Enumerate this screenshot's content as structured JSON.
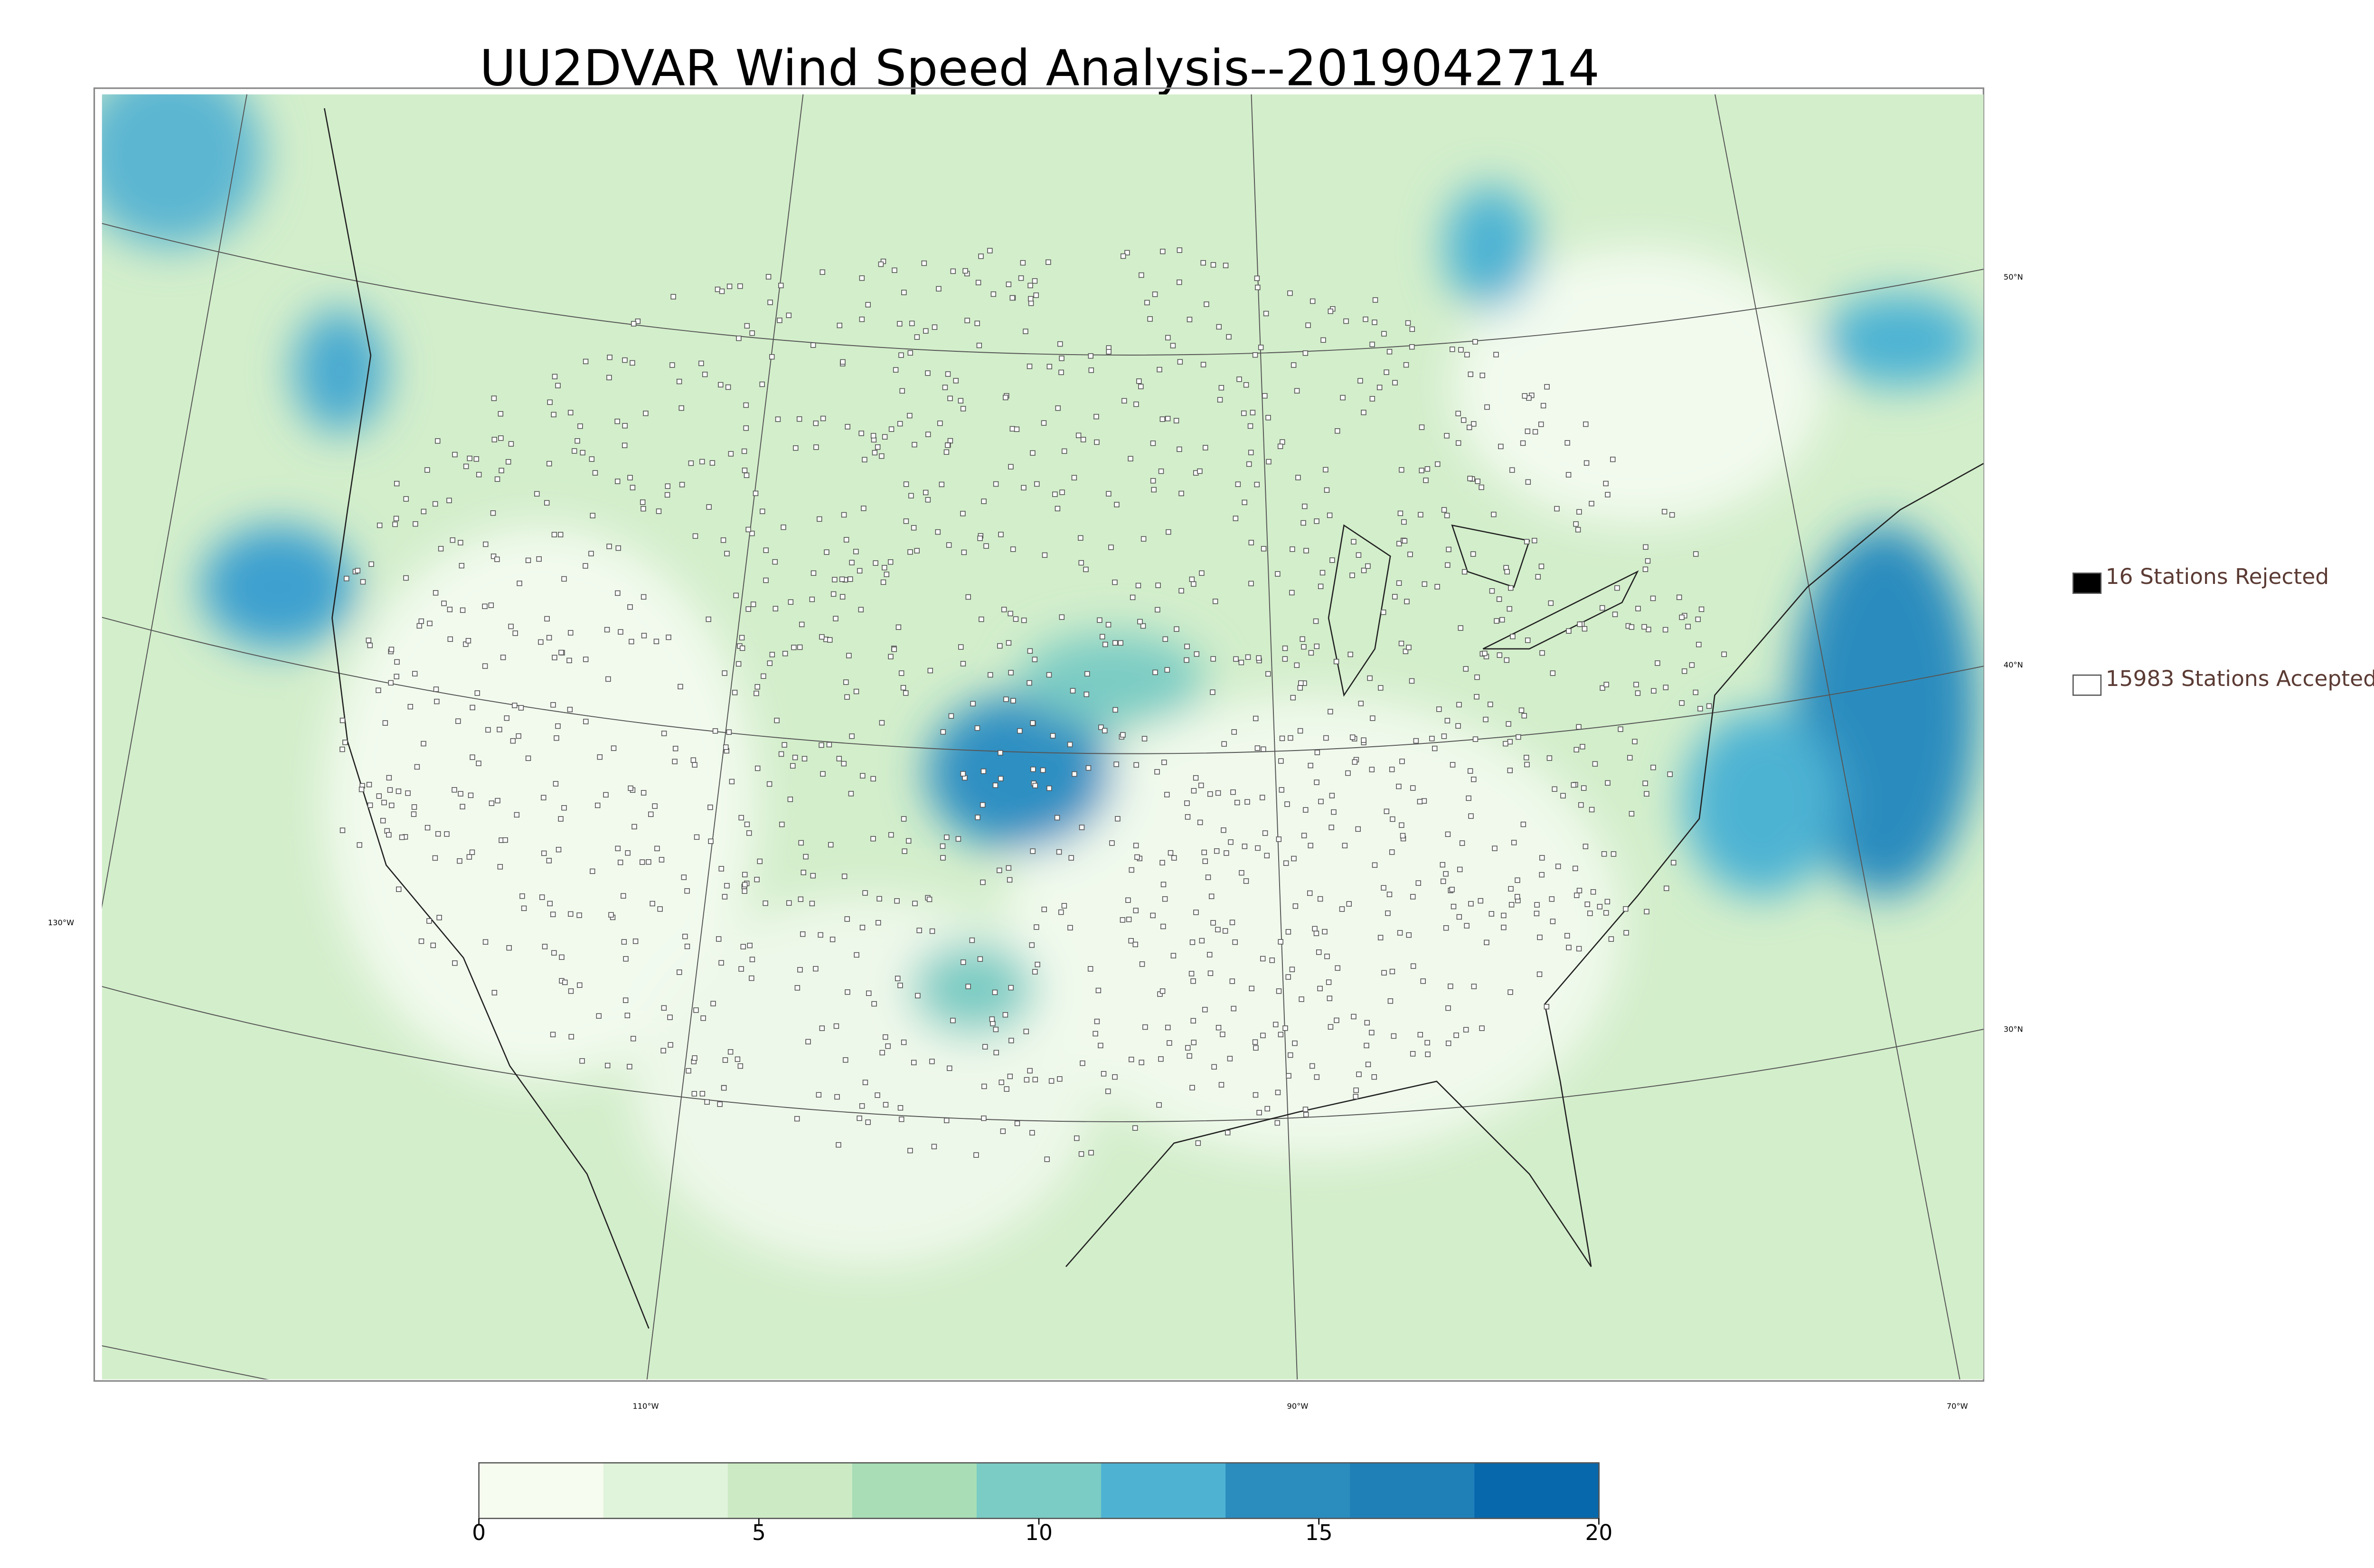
{
  "header": {
    "title": "UU2DVAR Wind Speed Analysis--2019042714"
  },
  "map": {
    "lat_labels": [
      "50°N",
      "40°N",
      "30°N"
    ],
    "lon_labels": [
      "130°W",
      "110°W",
      "90°W",
      "70°W"
    ]
  },
  "legend": {
    "items": [
      {
        "label": "16 Stations Rejected",
        "fill": "#000000"
      },
      {
        "label": "15983 Stations Accepted",
        "fill": "#ffffff"
      }
    ]
  },
  "colorbar": {
    "lim": [
      0,
      20
    ],
    "ticks": [
      0,
      5,
      10,
      15,
      20
    ],
    "colors": [
      "#f7fcf0",
      "#e0f3db",
      "#ccebc5",
      "#a8ddb5",
      "#7bccc4",
      "#4eb3d3",
      "#2b8cbe",
      "#1f80b8",
      "#0868ac"
    ]
  }
}
